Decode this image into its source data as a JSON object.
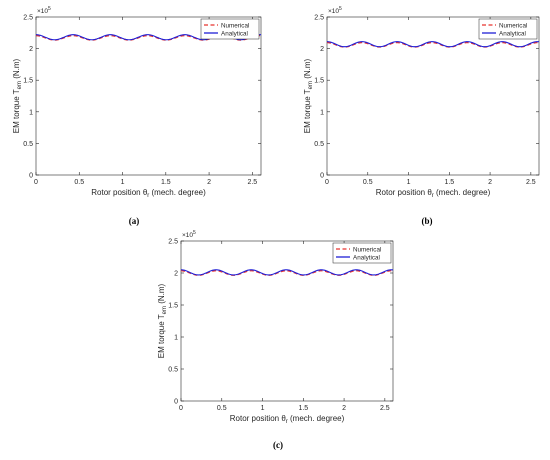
{
  "chart_data": [
    {
      "panel": "(a)",
      "type": "line",
      "xlabel": "Rotor position θr (mech. degree)",
      "ylabel": "EM torque Tem (N.m)",
      "y_multiplier": "×10^5",
      "xlim": [
        0,
        2.6
      ],
      "ylim": [
        0,
        2.5
      ],
      "x_ticks": [
        "0",
        "0.5",
        "1",
        "1.5",
        "2",
        "2.5"
      ],
      "y_ticks": [
        "0",
        "0.5",
        "1",
        "1.5",
        "2",
        "2.5"
      ],
      "grid": false,
      "legend_position": "top-right",
      "series": [
        {
          "name": "Numerical",
          "color": "#e8332e",
          "style": "dashed",
          "mean": 2.17,
          "amplitude": 0.035,
          "period": 0.43,
          "phase": 0.0
        },
        {
          "name": "Analytical",
          "color": "#1f1fd6",
          "style": "solid",
          "mean": 2.18,
          "amplitude": 0.04,
          "period": 0.43,
          "phase": 0.0
        }
      ]
    },
    {
      "panel": "(b)",
      "type": "line",
      "xlabel": "Rotor position θr (mech. degree)",
      "ylabel": "EM torque Tem (N.m)",
      "y_multiplier": "×10^5",
      "xlim": [
        0,
        2.6
      ],
      "ylim": [
        0,
        2.5
      ],
      "x_ticks": [
        "0",
        "0.5",
        "1",
        "1.5",
        "2",
        "2.5"
      ],
      "y_ticks": [
        "0",
        "0.5",
        "1",
        "1.5",
        "2",
        "2.5"
      ],
      "grid": false,
      "legend_position": "top-right",
      "series": [
        {
          "name": "Numerical",
          "color": "#e8332e",
          "style": "dashed",
          "mean": 2.06,
          "amplitude": 0.035,
          "period": 0.43,
          "phase": 0.0
        },
        {
          "name": "Analytical",
          "color": "#1f1fd6",
          "style": "solid",
          "mean": 2.07,
          "amplitude": 0.04,
          "period": 0.43,
          "phase": 0.0
        }
      ]
    },
    {
      "panel": "(c)",
      "type": "line",
      "xlabel": "Rotor position θr (mech. degree)",
      "ylabel": "EM torque Tem (N.m)",
      "y_multiplier": "×10^5",
      "xlim": [
        0,
        2.6
      ],
      "ylim": [
        0,
        2.5
      ],
      "x_ticks": [
        "0",
        "0.5",
        "1",
        "1.5",
        "2",
        "2.5"
      ],
      "y_ticks": [
        "0",
        "0.5",
        "1",
        "1.5",
        "2",
        "2.5"
      ],
      "grid": false,
      "legend_position": "top-right",
      "series": [
        {
          "name": "Numerical",
          "color": "#e8332e",
          "style": "dashed",
          "mean": 2.0,
          "amplitude": 0.035,
          "period": 0.43,
          "phase": 0.0
        },
        {
          "name": "Analytical",
          "color": "#1f1fd6",
          "style": "solid",
          "mean": 2.01,
          "amplitude": 0.04,
          "period": 0.43,
          "phase": 0.0
        }
      ]
    }
  ],
  "captions": [
    "(a)",
    "(b)",
    "(c)"
  ]
}
